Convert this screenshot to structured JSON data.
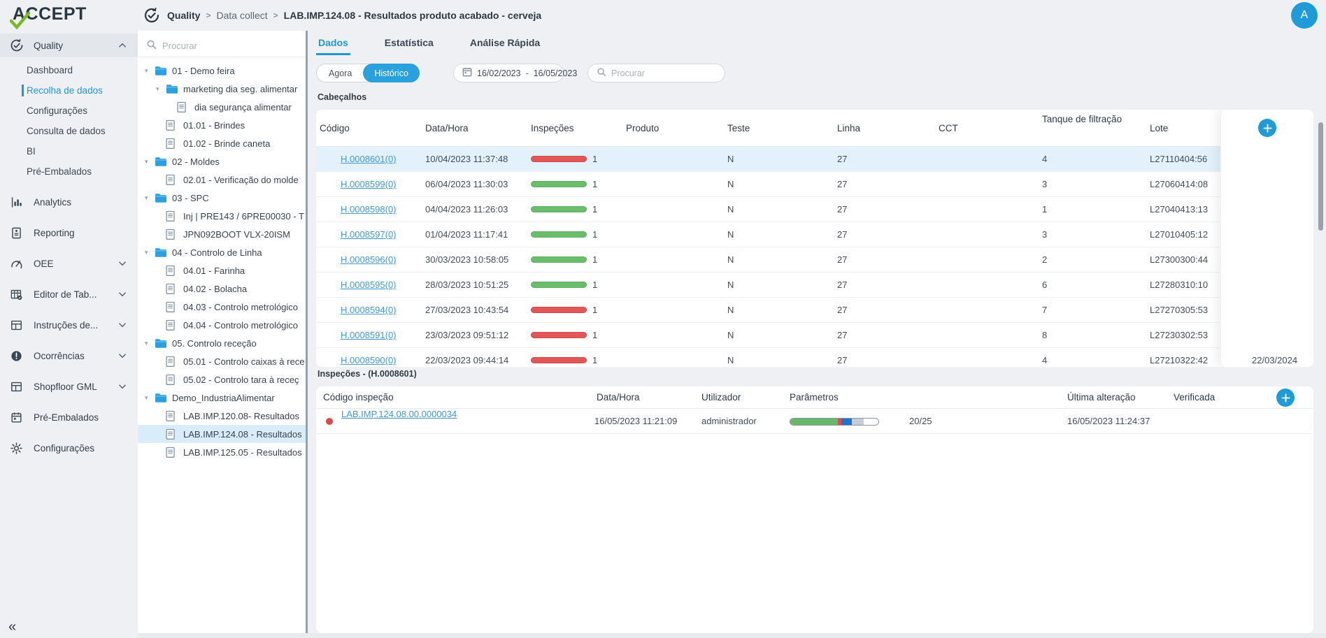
{
  "colors": {
    "accent": "#1f9bd7",
    "red": "#e15757",
    "green": "#6cbc6e",
    "link": "#4398d0",
    "selected_row": "#e2f1fb"
  },
  "topbar": {
    "logo_text": "ACCEPT",
    "breadcrumb": {
      "items": [
        "Quality",
        "Data collect",
        "LAB.IMP.124.08 - Resultados produto acabado - cerveja"
      ],
      "separator": ">"
    },
    "avatar_initial": "A"
  },
  "sidebar": {
    "collapse_glyph": "«",
    "items": [
      {
        "id": "quality",
        "label": "Quality",
        "icon": "quality-check-icon",
        "chevron": "up",
        "active_section": true,
        "children": [
          {
            "label": "Dashboard"
          },
          {
            "label": "Recolha de dados",
            "active": true
          },
          {
            "label": "Configurações"
          },
          {
            "label": "Consulta de dados"
          },
          {
            "label": "BI"
          },
          {
            "label": "Pré-Embalados"
          }
        ]
      },
      {
        "id": "analytics",
        "label": "Analytics",
        "icon": "bar-chart-icon"
      },
      {
        "id": "reporting",
        "label": "Reporting",
        "icon": "report-icon"
      },
      {
        "id": "oee",
        "label": "OEE",
        "icon": "gauge-icon",
        "chevron": "down"
      },
      {
        "id": "editor-de-tabelas",
        "label": "Editor de Tab...",
        "icon": "table-edit-icon",
        "chevron": "down"
      },
      {
        "id": "instrucoes-de",
        "label": "Instruções de...",
        "icon": "layout-icon",
        "chevron": "down"
      },
      {
        "id": "ocorrencias",
        "label": "Ocorrências",
        "icon": "alert-icon",
        "chevron": "down"
      },
      {
        "id": "shopfloor-gml",
        "label": "Shopfloor GML",
        "icon": "layout-icon",
        "chevron": "down"
      },
      {
        "id": "pre-embalados",
        "label": "Pré-Embalados",
        "icon": "calendar-icon"
      },
      {
        "id": "configuracoes",
        "label": "Configurações",
        "icon": "gear-icon"
      }
    ]
  },
  "tree": {
    "search_placeholder": "Procurar",
    "items": [
      {
        "label": "01 - Demo feira",
        "type": "folder",
        "level": 0,
        "expander": true
      },
      {
        "label": "marketing dia seg. alimentar",
        "type": "folder",
        "level": 1,
        "expander": true
      },
      {
        "label": "dia segurança alimentar",
        "type": "doc",
        "level": 2
      },
      {
        "label": "01.01 - Brindes",
        "type": "doc",
        "level": 1
      },
      {
        "label": "01.02 - Brinde caneta",
        "type": "doc",
        "level": 1
      },
      {
        "label": "02 - Moldes",
        "type": "folder",
        "level": 0,
        "expander": true
      },
      {
        "label": "02.01 - Verificação do molde",
        "type": "doc",
        "level": 1
      },
      {
        "label": "03 - SPC",
        "type": "folder",
        "level": 0,
        "expander": true
      },
      {
        "label": "Inj | PRE143 / 6PRE00030 - T",
        "type": "doc",
        "level": 1
      },
      {
        "label": "JPN092BOOT VLX-20ISM",
        "type": "doc",
        "level": 1
      },
      {
        "label": "04 - Controlo de Linha",
        "type": "folder",
        "level": 0,
        "expander": true
      },
      {
        "label": "04.01 - Farinha",
        "type": "doc",
        "level": 1
      },
      {
        "label": "04.02 - Bolacha",
        "type": "doc",
        "level": 1
      },
      {
        "label": "04.03 - Controlo metrológico",
        "type": "doc",
        "level": 1
      },
      {
        "label": "04.04 - Controlo metrológico",
        "type": "doc",
        "level": 1
      },
      {
        "label": "05. Controlo receção",
        "type": "folder",
        "level": 0,
        "expander": true
      },
      {
        "label": "05.01 - Controlo caixas à rece",
        "type": "doc",
        "level": 1
      },
      {
        "label": "05.02 - Controlo tara à receç",
        "type": "doc",
        "level": 1
      },
      {
        "label": "Demo_IndustriaAlimentar",
        "type": "folder",
        "level": 0,
        "expander": true
      },
      {
        "label": "LAB.IMP.120.08- Resultados",
        "type": "doc",
        "level": 1
      },
      {
        "label": "LAB.IMP.124.08 - Resultados",
        "type": "doc",
        "level": 1,
        "selected": true
      },
      {
        "label": "LAB.IMP.125.05 - Resultados",
        "type": "doc",
        "level": 1
      }
    ]
  },
  "main": {
    "tabs": [
      {
        "label": "Dados",
        "active": true
      },
      {
        "label": "Estatística"
      },
      {
        "label": "Análise Rápida"
      }
    ],
    "filters": {
      "toggle": [
        {
          "label": "Agora"
        },
        {
          "label": "Histórico",
          "active": true
        }
      ],
      "date_from": "16/02/2023",
      "date_separator": "-",
      "date_to": "16/05/2023",
      "search_placeholder": "Procurar"
    },
    "headers_table": {
      "section_title": "Cabeçalhos",
      "columns": [
        "Código",
        "Data/Hora",
        "Inspeções",
        "Produto",
        "Teste",
        "Linha",
        "CCT",
        "Tanque de filtração",
        "Lote"
      ],
      "rows": [
        {
          "codigo": "H.0008601(0)",
          "datahora": "10/04/2023 11:37:48",
          "inspecoes": "1",
          "status": "red",
          "produto": "",
          "teste": "N",
          "linha": "27",
          "cct": "",
          "tanque": "4",
          "lote": "L27110404:56",
          "extra": "",
          "selected": true
        },
        {
          "codigo": "H.0008599(0)",
          "datahora": "06/04/2023 11:30:03",
          "inspecoes": "1",
          "status": "green",
          "produto": "",
          "teste": "N",
          "linha": "27",
          "cct": "",
          "tanque": "3",
          "lote": "L27060414:08",
          "extra": ""
        },
        {
          "codigo": "H.0008598(0)",
          "datahora": "04/04/2023 11:26:03",
          "inspecoes": "1",
          "status": "green",
          "produto": "",
          "teste": "N",
          "linha": "27",
          "cct": "",
          "tanque": "1",
          "lote": "L27040413:13",
          "extra": ""
        },
        {
          "codigo": "H.0008597(0)",
          "datahora": "01/04/2023 11:17:41",
          "inspecoes": "1",
          "status": "green",
          "produto": "",
          "teste": "N",
          "linha": "27",
          "cct": "",
          "tanque": "3",
          "lote": "L27010405:12",
          "extra": ""
        },
        {
          "codigo": "H.0008596(0)",
          "datahora": "30/03/2023 10:58:05",
          "inspecoes": "1",
          "status": "green",
          "produto": "",
          "teste": "N",
          "linha": "27",
          "cct": "",
          "tanque": "2",
          "lote": "L27300300:44",
          "extra": ""
        },
        {
          "codigo": "H.0008595(0)",
          "datahora": "28/03/2023 10:51:25",
          "inspecoes": "1",
          "status": "green",
          "produto": "",
          "teste": "N",
          "linha": "27",
          "cct": "",
          "tanque": "6",
          "lote": "L27280310:10",
          "extra": ""
        },
        {
          "codigo": "H.0008594(0)",
          "datahora": "27/03/2023 10:43:54",
          "inspecoes": "1",
          "status": "red",
          "produto": "",
          "teste": "N",
          "linha": "27",
          "cct": "",
          "tanque": "7",
          "lote": "L27270305:53",
          "extra": ""
        },
        {
          "codigo": "H.0008591(0)",
          "datahora": "23/03/2023 09:51:12",
          "inspecoes": "1",
          "status": "red",
          "produto": "",
          "teste": "N",
          "linha": "27",
          "cct": "",
          "tanque": "8",
          "lote": "L27230302:53",
          "extra": ""
        },
        {
          "codigo": "H.0008590(0)",
          "datahora": "22/03/2023 09:44:14",
          "inspecoes": "1",
          "status": "red",
          "produto": "",
          "teste": "N",
          "linha": "27",
          "cct": "",
          "tanque": "4",
          "lote": "L27210322:42",
          "extra": "22/03/2024"
        }
      ]
    },
    "inspections_table": {
      "section_title": "Inspeções - (H.0008601)",
      "columns": [
        "Código inspeção",
        "Data/Hora",
        "Utilizador",
        "Parâmetros",
        "Última alteração",
        "Verificada"
      ],
      "row": {
        "codigo": "LAB.IMP.124.08.00.0000034",
        "datahora": "16/05/2023 11:21:09",
        "utilizador": "administrador",
        "parametros_value": "20/25",
        "ultima_alteracao": "16/05/2023 11:24:37",
        "verificada": "",
        "progress_segments": [
          {
            "color": "#68b86a",
            "pct": 54
          },
          {
            "color": "#e04b4b",
            "pct": 4
          },
          {
            "color": "#2173d0",
            "pct": 12
          },
          {
            "color": "#c4cdd5",
            "pct": 13
          }
        ]
      }
    }
  }
}
